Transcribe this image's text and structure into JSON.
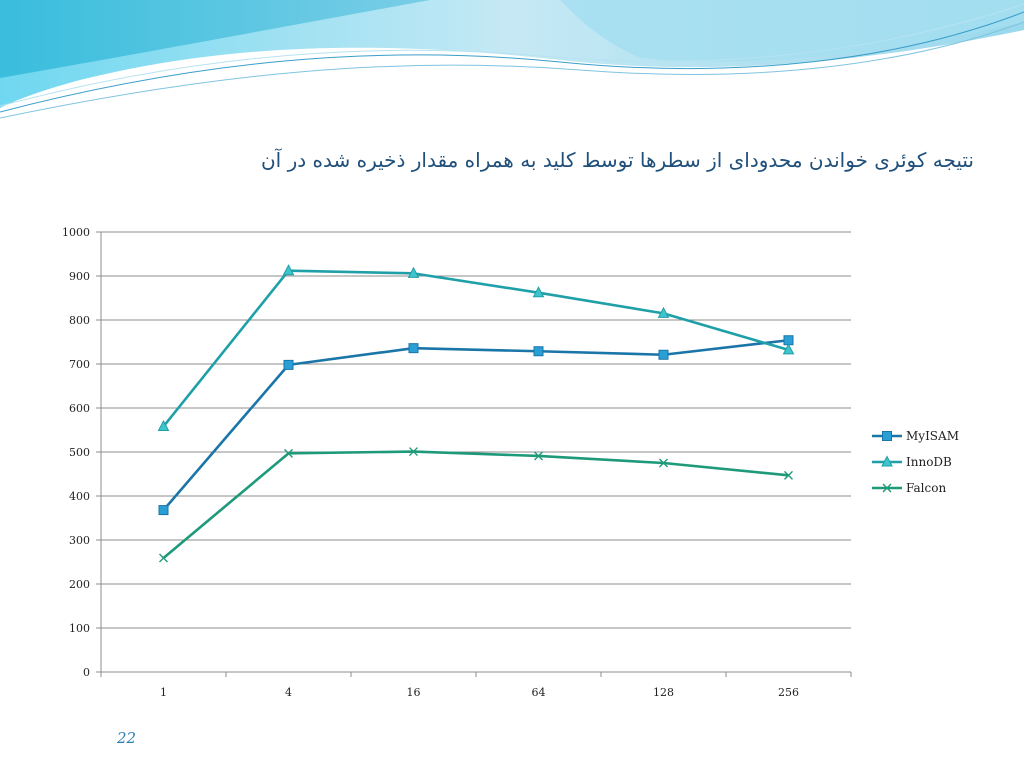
{
  "slide": {
    "title": "نتیجه کوئری خواندن محدودای از سطرها توسط کلید  به همراه مقدار ذخیره شده در آن",
    "page_number": "22"
  },
  "theme": {
    "wave_dark": "#7cc6e6",
    "wave_light": "#c9ecf7",
    "wave_line": "#3a9ec9"
  },
  "chart_data": {
    "type": "line",
    "title": "",
    "xlabel": "",
    "ylabel": "",
    "categories": [
      "1",
      "4",
      "16",
      "64",
      "128",
      "256"
    ],
    "ylim": [
      0,
      1000
    ],
    "yticks": [
      0,
      100,
      200,
      300,
      400,
      500,
      600,
      700,
      800,
      900,
      1000
    ],
    "grid": true,
    "legend_position": "right",
    "series": [
      {
        "name": "MyISAM",
        "values": [
          368,
          698,
          736,
          729,
          721,
          754
        ],
        "color": "#1a75a8",
        "marker": "square"
      },
      {
        "name": "InnoDB",
        "values": [
          558,
          912,
          906,
          862,
          815,
          732
        ],
        "color": "#1fa0a8",
        "marker": "triangle"
      },
      {
        "name": "Falcon",
        "values": [
          259,
          497,
          501,
          491,
          475,
          447
        ],
        "color": "#1e9a7a",
        "marker": "x"
      }
    ]
  }
}
